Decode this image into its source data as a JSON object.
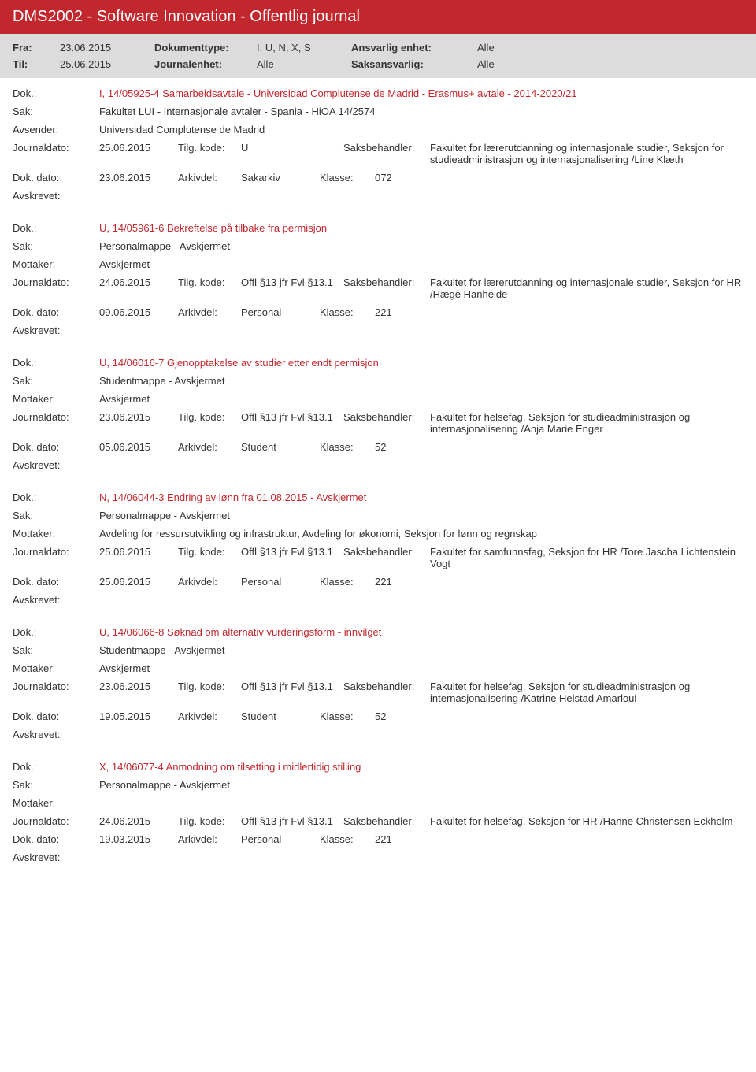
{
  "header": {
    "title": "DMS2002 - Software Innovation - Offentlig journal"
  },
  "filter": {
    "fra_label": "Fra:",
    "fra_value": "23.06.2015",
    "til_label": "Til:",
    "til_value": "25.06.2015",
    "doktype_label": "Dokumenttype:",
    "doktype_value": "I, U, N, X, S",
    "journalenhet_label": "Journalenhet:",
    "journalenhet_value": "Alle",
    "ansvarlig_label": "Ansvarlig enhet:",
    "ansvarlig_value": "Alle",
    "saksansvarlig_label": "Saksansvarlig:",
    "saksansvarlig_value": "Alle"
  },
  "labels": {
    "dok": "Dok.:",
    "sak": "Sak:",
    "avsender": "Avsender:",
    "mottaker": "Mottaker:",
    "journaldato": "Journaldato:",
    "tilgkode": "Tilg. kode:",
    "saksbehandler": "Saksbehandler:",
    "dokdato": "Dok. dato:",
    "arkivdel": "Arkivdel:",
    "klasse": "Klasse:",
    "avskrevet": "Avskrevet:"
  },
  "entries": [
    {
      "dok": "I, 14/05925-4 Samarbeidsavtale - Universidad Complutense de Madrid - Erasmus+ avtale - 2014-2020/21",
      "sak": "Fakultet LUI - Internasjonale avtaler - Spania - HiOA 14/2574",
      "party_label": "Avsender:",
      "party": "Universidad Complutense de Madrid",
      "journaldato": "25.06.2015",
      "tilgkode": "U",
      "saksbehandler": "Fakultet for lærerutdanning og internasjonale studier, Seksjon for studieadministrasjon og internasjonalisering /Line Klæth",
      "dokdato": "23.06.2015",
      "arkivdel": "Sakarkiv",
      "klasse": "072"
    },
    {
      "dok": "U, 14/05961-6 Bekreftelse på tilbake fra permisjon",
      "sak": "Personalmappe - Avskjermet",
      "party_label": "Mottaker:",
      "party": "Avskjermet",
      "journaldato": "24.06.2015",
      "tilgkode": "Offl §13 jfr Fvl §13.1",
      "saksbehandler": "Fakultet for lærerutdanning og internasjonale studier, Seksjon for HR /Hæge Hanheide",
      "dokdato": "09.06.2015",
      "arkivdel": "Personal",
      "klasse": "221"
    },
    {
      "dok": "U, 14/06016-7 Gjenopptakelse av studier etter endt permisjon",
      "sak": "Studentmappe - Avskjermet",
      "party_label": "Mottaker:",
      "party": "Avskjermet",
      "journaldato": "23.06.2015",
      "tilgkode": "Offl §13 jfr Fvl §13.1",
      "saksbehandler": "Fakultet for helsefag, Seksjon for studieadministrasjon og internasjonalisering /Anja Marie Enger",
      "dokdato": "05.06.2015",
      "arkivdel": "Student",
      "klasse": "52"
    },
    {
      "dok": "N, 14/06044-3 Endring av lønn fra 01.08.2015 - Avskjermet",
      "sak": "Personalmappe - Avskjermet",
      "party_label": "Mottaker:",
      "party": "Avdeling for ressursutvikling og infrastruktur, Avdeling for økonomi, Seksjon for lønn og regnskap",
      "journaldato": "25.06.2015",
      "tilgkode": "Offl §13 jfr Fvl §13.1",
      "saksbehandler": "Fakultet for samfunnsfag, Seksjon for HR /Tore Jascha Lichtenstein Vogt",
      "dokdato": "25.06.2015",
      "arkivdel": "Personal",
      "klasse": "221"
    },
    {
      "dok": "U, 14/06066-8 Søknad om alternativ vurderingsform - innvilget",
      "sak": "Studentmappe - Avskjermet",
      "party_label": "Mottaker:",
      "party": "Avskjermet",
      "journaldato": "23.06.2015",
      "tilgkode": "Offl §13 jfr Fvl §13.1",
      "saksbehandler": "Fakultet for helsefag, Seksjon for studieadministrasjon og internasjonalisering /Katrine Helstad Amarloui",
      "dokdato": "19.05.2015",
      "arkivdel": "Student",
      "klasse": "52"
    },
    {
      "dok": "X, 14/06077-4 Anmodning om tilsetting i midlertidig stilling",
      "sak": "Personalmappe - Avskjermet",
      "party_label": "Mottaker:",
      "party": "",
      "journaldato": "24.06.2015",
      "tilgkode": "Offl §13 jfr Fvl §13.1",
      "saksbehandler": "Fakultet for helsefag, Seksjon for HR /Hanne Christensen Eckholm",
      "dokdato": "19.03.2015",
      "arkivdel": "Personal",
      "klasse": "221"
    }
  ]
}
